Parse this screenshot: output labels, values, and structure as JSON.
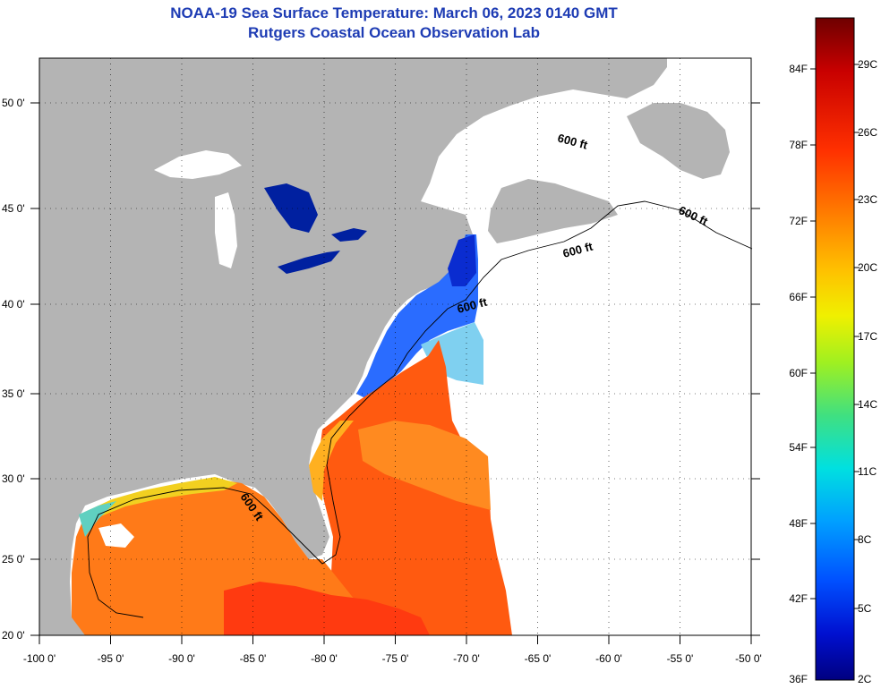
{
  "title": {
    "line1": "NOAA-19 Sea Surface Temperature:  March 06, 2023 0140 GMT",
    "line2": "Rutgers Coastal Ocean Observation Lab"
  },
  "axes": {
    "longitude_ticks": [
      "-100 0'",
      "-95 0'",
      "-90 0'",
      "-85 0'",
      "-80 0'",
      "-75 0'",
      "-70 0'",
      "-65 0'",
      "-60 0'",
      "-55 0'",
      "-50 0'"
    ],
    "latitude_ticks": [
      "50 0'",
      "45 0'",
      "40 0'",
      "35 0'",
      "30 0'",
      "25 0'",
      "20 0'"
    ],
    "lon_range": [
      -100,
      -50
    ],
    "lat_range": [
      20,
      52.5
    ]
  },
  "contour_labels": [
    "600 ft",
    "600 ft",
    "600 ft",
    "600 ft",
    "600 ft"
  ],
  "colorbar": {
    "fahrenheit_labels": [
      "84F",
      "78F",
      "72F",
      "66F",
      "60F",
      "54F",
      "48F",
      "42F",
      "36F"
    ],
    "celsius_labels": [
      "29C",
      "26C",
      "23C",
      "20C",
      "17C",
      "14C",
      "11C",
      "8C",
      "5C",
      "2C"
    ],
    "colors": [
      "#6e0000",
      "#c80000",
      "#ff3000",
      "#ff8000",
      "#ffc000",
      "#f0f000",
      "#a0f020",
      "#40e080",
      "#00e0e0",
      "#00a0ff",
      "#0050ff",
      "#0010d0",
      "#000080"
    ]
  },
  "colors": {
    "land": "#b4b4b4",
    "title": "#1e3cb4",
    "no_data": "#ffffff"
  }
}
